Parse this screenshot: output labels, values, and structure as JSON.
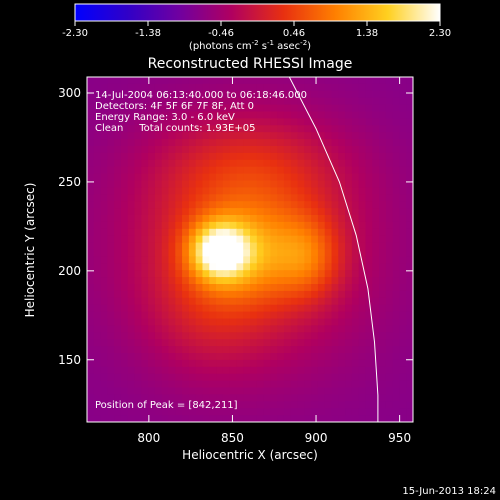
{
  "chart_data": {
    "type": "heatmap",
    "title": "Reconstructed RHESSI Image",
    "xlabel": "Heliocentric X (arcsec)",
    "ylabel": "Heliocentric Y (arcsec)",
    "xlim": [
      763,
      958
    ],
    "ylim": [
      115,
      309
    ],
    "x_ticks": [
      800,
      850,
      900,
      950
    ],
    "y_ticks": [
      150,
      200,
      250,
      300
    ],
    "colorbar": {
      "range": [
        -2.3,
        2.3
      ],
      "ticks": [
        "-2.30",
        "-1.38",
        "-0.46",
        "0.46",
        "1.38",
        "2.30"
      ],
      "unit_label": "(photons cm",
      "unit_exp1": "-2",
      "unit_mid": " s",
      "unit_exp2": "-1",
      "unit_mid2": " asec",
      "unit_exp3": "-2",
      "unit_close": ")",
      "colormap": [
        "#0000ff",
        "#3000c8",
        "#7000a0",
        "#b00060",
        "#e83010",
        "#ff8000",
        "#ffd020",
        "#ffffff"
      ]
    },
    "annotations": [
      "14-Jul-2004 06:13:40.000 to 06:18:46.000",
      "Detectors: 4F 5F 6F 7F 8F, Att 0",
      "Energy Range: 3.0 - 6.0 keV",
      "Clean     Total counts: 1.93E+05"
    ],
    "peak_label": "Position of Peak = [842,211]",
    "peak": [
      842,
      211
    ],
    "limb_curve": [
      [
        884,
        309
      ],
      [
        900,
        280
      ],
      [
        914,
        250
      ],
      [
        924,
        220
      ],
      [
        931,
        190
      ],
      [
        935,
        160
      ],
      [
        937,
        130
      ],
      [
        937,
        115
      ]
    ],
    "sources": [
      {
        "x": 858,
        "y": 213,
        "sx": 50,
        "sy": 45,
        "a": 1.1
      },
      {
        "x": 842,
        "y": 211,
        "sx": 12,
        "sy": 11,
        "a": 1.9
      },
      {
        "x": 858,
        "y": 210,
        "sx": 22,
        "sy": 18,
        "a": 0.9
      },
      {
        "x": 895,
        "y": 208,
        "sx": 14,
        "sy": 16,
        "a": 0.8
      },
      {
        "x": 860,
        "y": 258,
        "sx": 40,
        "sy": 22,
        "a": 0.5
      },
      {
        "x": 835,
        "y": 175,
        "sx": 25,
        "sy": 25,
        "a": 0.3
      }
    ]
  },
  "footer_date": "15-Jun-2013 18:24"
}
